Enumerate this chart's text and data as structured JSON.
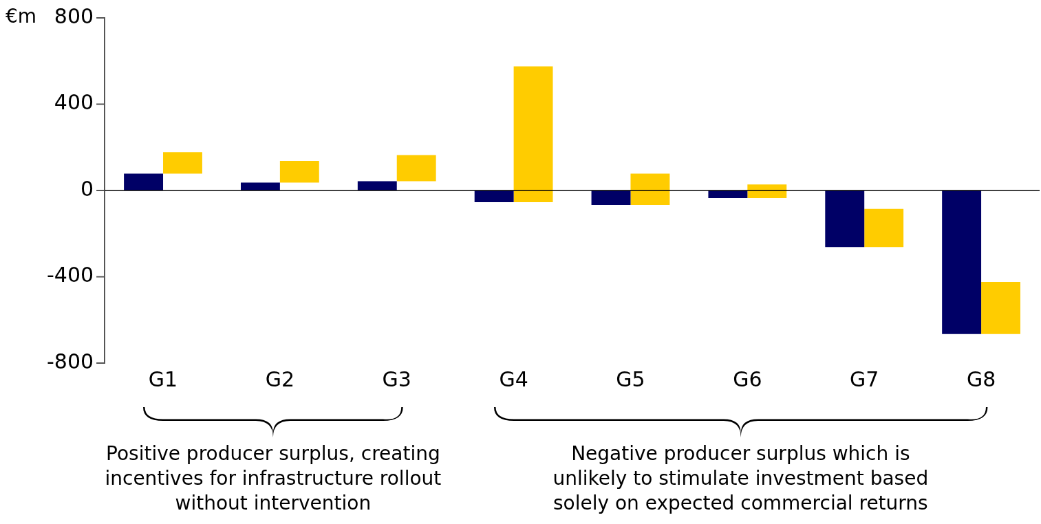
{
  "chart_data": {
    "type": "bar",
    "ylabel": "€m",
    "categories": [
      "G1",
      "G2",
      "G3",
      "G4",
      "G5",
      "G6",
      "G7",
      "G8"
    ],
    "series": [
      {
        "color": "#000066",
        "values": [
          78,
          37,
          43,
          -54,
          -67,
          -35,
          -262,
          -665
        ]
      },
      {
        "color": "#ffcc00",
        "base": [
          78,
          37,
          43,
          -54,
          -67,
          -35,
          -262,
          -665
        ],
        "values": [
          100,
          100,
          121,
          629,
          145,
          63,
          177,
          241
        ]
      }
    ],
    "ref_lines": [
      {
        "axis": "y",
        "value": 0,
        "color": "#000000"
      }
    ],
    "ylim": [
      -800,
      800
    ],
    "yticks": [
      -800,
      -400,
      0,
      400,
      800
    ],
    "grid": false,
    "legend": false,
    "annotations": [
      "Positive producer surplus, creating incentives for infrastructure rollout without intervention",
      "Negative producer surplus which is unlikely to stimulate investment based solely on expected commercial returns"
    ]
  }
}
